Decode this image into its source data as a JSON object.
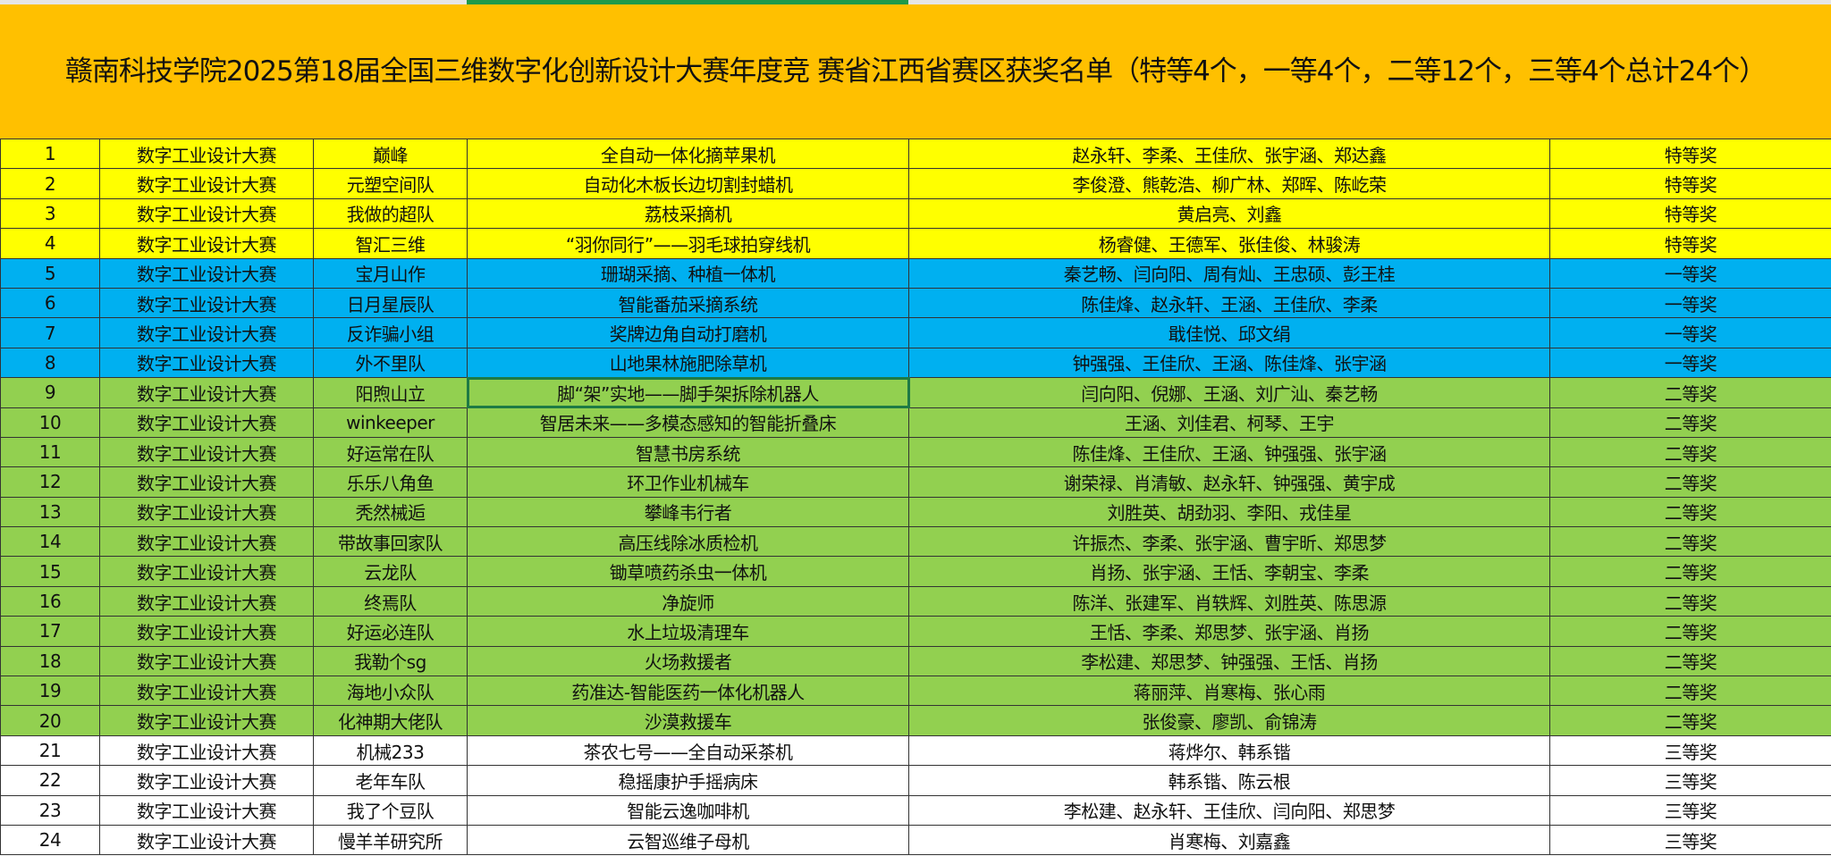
{
  "title": "赣南科技学院2025第18届全国三维数字化创新设计大赛年度竞 赛省江西省赛区获奖名单（特等4个，一等4个，二等12个，三等4个总计24个）",
  "colors": {
    "header": "#FFC000",
    "特等奖": "#FFFF00",
    "一等奖": "#00B0F0",
    "二等奖": "#92D050",
    "三等奖": "#FFFFFF"
  },
  "rows": [
    {
      "no": "1",
      "track": "数字工业设计大赛",
      "team": "巅峰",
      "project": "全自动一体化摘苹果机",
      "members": "赵永轩、李柔、王佳欣、张宇涵、郑达鑫",
      "award": "特等奖",
      "tier": 0
    },
    {
      "no": "2",
      "track": "数字工业设计大赛",
      "team": "元塑空间队",
      "project": "自动化木板长边切割封蜡机",
      "members": "李俊澄、熊乾浩、柳广林、郑晖、陈屹荣",
      "award": "特等奖",
      "tier": 0
    },
    {
      "no": "3",
      "track": "数字工业设计大赛",
      "team": "我做的超队",
      "project": "荔枝采摘机",
      "members": "黄启亮、刘鑫",
      "award": "特等奖",
      "tier": 0
    },
    {
      "no": "4",
      "track": "数字工业设计大赛",
      "team": "智汇三维",
      "project": "“羽你同行”——羽毛球拍穿线机",
      "members": "杨睿健、王德军、张佳俊、林骏涛",
      "award": "特等奖",
      "tier": 0
    },
    {
      "no": "5",
      "track": "数字工业设计大赛",
      "team": "宝月山作",
      "project": "珊瑚采摘、种植一体机",
      "members": "秦艺畅、闫向阳、周有灿、王忠硕、彭王桂",
      "award": "一等奖",
      "tier": 1
    },
    {
      "no": "6",
      "track": "数字工业设计大赛",
      "team": "日月星辰队",
      "project": "智能番茄采摘系统",
      "members": "陈佳烽、赵永轩、王涵、王佳欣、李柔",
      "award": "一等奖",
      "tier": 1
    },
    {
      "no": "7",
      "track": "数字工业设计大赛",
      "team": "反诈骗小组",
      "project": "奖牌边角自动打磨机",
      "members": "戢佳悦、邱文绢",
      "award": "一等奖",
      "tier": 1
    },
    {
      "no": "8",
      "track": "数字工业设计大赛",
      "team": "外不里队",
      "project": "山地果林施肥除草机",
      "members": "钟强强、王佳欣、王涵、陈佳烽、张宇涵",
      "award": "一等奖",
      "tier": 1
    },
    {
      "no": "9",
      "track": "数字工业设计大赛",
      "team": "阳煦山立",
      "project": "脚“架”实地——脚手架拆除机器人",
      "members": "闫向阳、倪娜、王涵、刘广汕、秦艺畅",
      "award": "二等奖",
      "tier": 2
    },
    {
      "no": "10",
      "track": "数字工业设计大赛",
      "team": "winkeeper",
      "project": "智居未来——多模态感知的智能折叠床",
      "members": "王涵、刘佳君、柯琴、王宇",
      "award": "二等奖",
      "tier": 2
    },
    {
      "no": "11",
      "track": "数字工业设计大赛",
      "team": "好运常在队",
      "project": "智慧书房系统",
      "members": "陈佳烽、王佳欣、王涵、钟强强、张宇涵",
      "award": "二等奖",
      "tier": 2
    },
    {
      "no": "12",
      "track": "数字工业设计大赛",
      "team": "乐乐八角鱼",
      "project": "环卫作业机械车",
      "members": "谢荣禄、肖清敏、赵永轩、钟强强、黄宇成",
      "award": "二等奖",
      "tier": 2
    },
    {
      "no": "13",
      "track": "数字工业设计大赛",
      "team": "秃然械逅",
      "project": "攀峰韦行者",
      "members": "刘胜英、胡劲羽、李阳、戎佳星",
      "award": "二等奖",
      "tier": 2
    },
    {
      "no": "14",
      "track": "数字工业设计大赛",
      "team": "带故事回家队",
      "project": "高压线除冰质检机",
      "members": "许振杰、李柔、张宇涵、曹宇昕、郑思梦",
      "award": "二等奖",
      "tier": 2
    },
    {
      "no": "15",
      "track": "数字工业设计大赛",
      "team": "云龙队",
      "project": "锄草喷药杀虫一体机",
      "members": "肖扬、张宇涵、王恬、李朝宝、李柔",
      "award": "二等奖",
      "tier": 2
    },
    {
      "no": "16",
      "track": "数字工业设计大赛",
      "team": "终焉队",
      "project": "净旋师",
      "members": "陈洋、张建军、肖轶辉、刘胜英、陈思源",
      "award": "二等奖",
      "tier": 2
    },
    {
      "no": "17",
      "track": "数字工业设计大赛",
      "team": "好运必连队",
      "project": "水上垃圾清理车",
      "members": "王恬、李柔、郑思梦、张宇涵、肖扬",
      "award": "二等奖",
      "tier": 2
    },
    {
      "no": "18",
      "track": "数字工业设计大赛",
      "team": "我勒个sg",
      "project": "火场救援者",
      "members": "李松建、郑思梦、钟强强、王恬、肖扬",
      "award": "二等奖",
      "tier": 2
    },
    {
      "no": "19",
      "track": "数字工业设计大赛",
      "team": "海地小众队",
      "project": "药准达-智能医药一体化机器人",
      "members": "蒋丽萍、肖寒梅、张心雨",
      "award": "二等奖",
      "tier": 2
    },
    {
      "no": "20",
      "track": "数字工业设计大赛",
      "team": "化神期大佬队",
      "project": "沙漠救援车",
      "members": "张俊豪、廖凯、俞锦涛",
      "award": "二等奖",
      "tier": 2
    },
    {
      "no": "21",
      "track": "数字工业设计大赛",
      "team": "机械233",
      "project": "茶农七号——全自动采茶机",
      "members": "蒋烨尔、韩系锴",
      "award": "三等奖",
      "tier": 3
    },
    {
      "no": "22",
      "track": "数字工业设计大赛",
      "team": "老年车队",
      "project": "稳摇康护手摇病床",
      "members": "韩系锴、陈云根",
      "award": "三等奖",
      "tier": 3
    },
    {
      "no": "23",
      "track": "数字工业设计大赛",
      "team": "我了个豆队",
      "project": "智能云逸咖啡机",
      "members": "李松建、赵永轩、王佳欣、闫向阳、郑思梦",
      "award": "三等奖",
      "tier": 3
    },
    {
      "no": "24",
      "track": "数字工业设计大赛",
      "team": "慢羊羊研究所",
      "project": "云智巡维子母机",
      "members": "肖寒梅、刘嘉鑫",
      "award": "三等奖",
      "tier": 3
    }
  ]
}
